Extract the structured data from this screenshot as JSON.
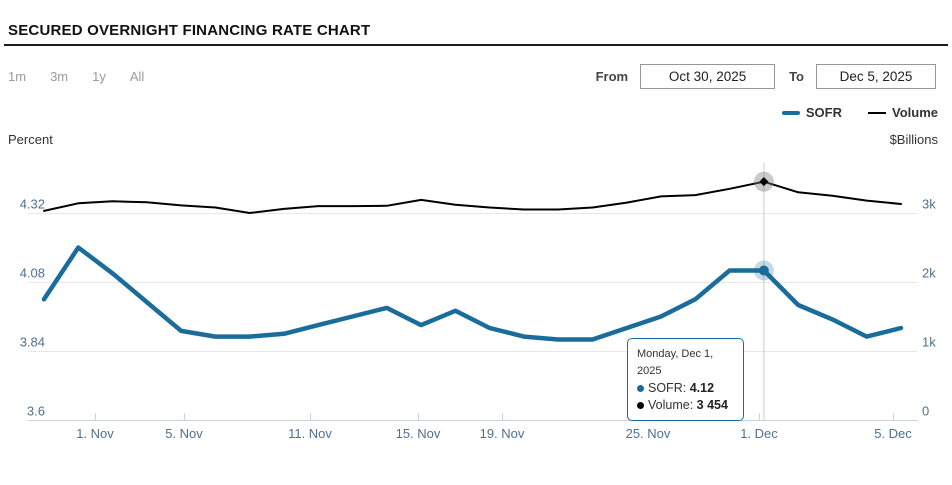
{
  "page": {
    "title": "SECURED OVERNIGHT FINANCING RATE CHART"
  },
  "controls": {
    "ranges": [
      {
        "label": "1m"
      },
      {
        "label": "3m"
      },
      {
        "label": "1y"
      },
      {
        "label": "All"
      }
    ],
    "from_label": "From",
    "from_value": "Oct 30, 2025",
    "to_label": "To",
    "to_value": "Dec 5, 2025"
  },
  "legend": [
    {
      "label": "SOFR",
      "color": "#1a6d9a"
    },
    {
      "label": "Volume",
      "color": "#000000"
    }
  ],
  "axes": {
    "left_title": "Percent",
    "right_title": "$Billions"
  },
  "tooltip": {
    "date": "Monday, Dec 1, 2025",
    "rows": [
      {
        "label": "SOFR:",
        "value": "4.12",
        "color": "#1a6d9a"
      },
      {
        "label": "Volume:",
        "value": "3 454",
        "color": "#000000"
      }
    ]
  },
  "chart_data": {
    "type": "line",
    "categories": [
      "Oct 30",
      "Oct 31",
      "Nov 3",
      "Nov 4",
      "Nov 5",
      "Nov 6",
      "Nov 7",
      "Nov 10",
      "Nov 11",
      "Nov 12",
      "Nov 13",
      "Nov 14",
      "Nov 17",
      "Nov 18",
      "Nov 19",
      "Nov 20",
      "Nov 21",
      "Nov 24",
      "Nov 25",
      "Nov 26",
      "Nov 28",
      "Dec 1",
      "Dec 2",
      "Dec 3",
      "Dec 4",
      "Dec 5"
    ],
    "series": [
      {
        "name": "SOFR",
        "axis": "left",
        "color": "#1a6d9a",
        "width": 4.5,
        "values": [
          4.02,
          4.2,
          4.11,
          4.01,
          3.91,
          3.89,
          3.89,
          3.9,
          3.93,
          3.96,
          3.99,
          3.93,
          3.98,
          3.92,
          3.89,
          3.88,
          3.88,
          3.92,
          3.96,
          4.02,
          4.12,
          4.12,
          4.0,
          3.95,
          3.89,
          3.92
        ]
      },
      {
        "name": "Volume",
        "axis": "right",
        "color": "#000000",
        "width": 2,
        "values": [
          3030,
          3140,
          3170,
          3155,
          3110,
          3080,
          3000,
          3060,
          3100,
          3100,
          3105,
          3190,
          3120,
          3080,
          3050,
          3050,
          3080,
          3150,
          3240,
          3260,
          3350,
          3454,
          3300,
          3250,
          3180,
          3130
        ]
      }
    ],
    "x_tick_labels": [
      "1. Nov",
      "5. Nov",
      "11. Nov",
      "15. Nov",
      "19. Nov",
      "25. Nov",
      "1. Dec",
      "5. Dec"
    ],
    "y_left": {
      "title": "Percent",
      "min": 3.6,
      "max": 4.53,
      "ticks": [
        {
          "value": 4.32,
          "label": "4.32"
        },
        {
          "value": 4.08,
          "label": "4.08"
        },
        {
          "value": 3.84,
          "label": "3.84"
        },
        {
          "value": 3.6,
          "label": "3.6"
        }
      ]
    },
    "y_right": {
      "title": "$Billions",
      "min": 0,
      "max": 3900,
      "ticks": [
        {
          "value": 3000,
          "label": "3k"
        },
        {
          "value": 2000,
          "label": "2k"
        },
        {
          "value": 1000,
          "label": "1k"
        },
        {
          "value": 0,
          "label": "0"
        }
      ]
    },
    "highlight_index": 21,
    "highlight": {
      "date": "Monday, Dec 1, 2025",
      "SOFR": 4.12,
      "Volume": 3454
    },
    "grid": true,
    "legend_position": "top-right"
  }
}
